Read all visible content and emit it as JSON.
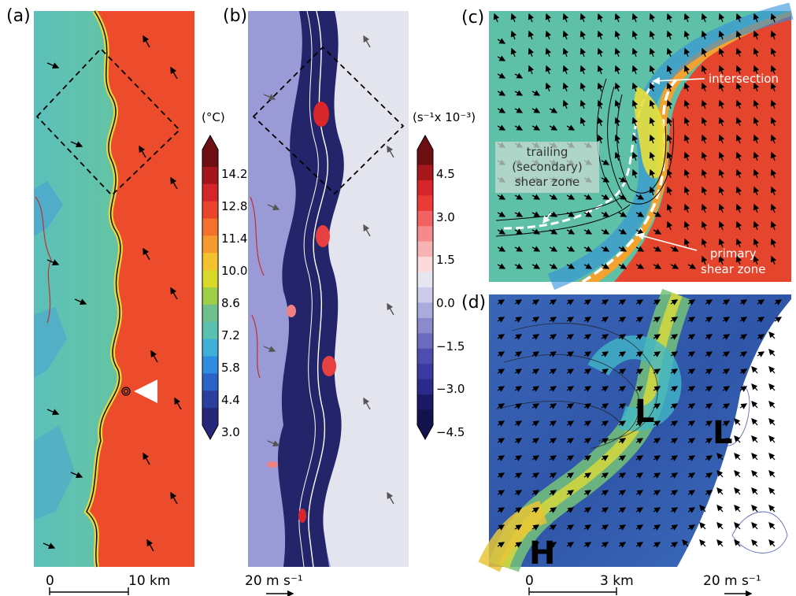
{
  "panel_labels": {
    "a": "(a)",
    "b": "(b)",
    "c": "(c)",
    "d": "(d)"
  },
  "colorbar_a": {
    "unit": "(°C)",
    "ticks": [
      "14.2",
      "12.8",
      "11.4",
      "10.0",
      "8.6",
      "7.2",
      "5.8",
      "4.4",
      "3.0"
    ],
    "colors": [
      "#6d0f12",
      "#a3171c",
      "#d2262a",
      "#e9442c",
      "#f2712c",
      "#f69a30",
      "#f5c22f",
      "#d9d929",
      "#9fcf49",
      "#6fc08d",
      "#5ac1b0",
      "#3fb0d8",
      "#2f8ce0",
      "#2b63c8",
      "#2a3f9e",
      "#25287a"
    ]
  },
  "colorbar_b": {
    "unit": "(s⁻¹x 10⁻³)",
    "ticks": [
      "4.5",
      "3.0",
      "1.5",
      "0.0",
      "−1.5",
      "−3.0",
      "−4.5"
    ],
    "colors": [
      "#6d0f12",
      "#a8171c",
      "#d6262a",
      "#ec3a35",
      "#f26262",
      "#f48a8a",
      "#f7b3b3",
      "#fadada",
      "#e6e6f0",
      "#ccccea",
      "#aaaadb",
      "#8a8acc",
      "#6b6bbd",
      "#4d4daf",
      "#3a3aa0",
      "#2a2a8a",
      "#1a1a66",
      "#12124d"
    ]
  },
  "annotations_c": {
    "intersection": "intersection",
    "trailing": [
      "trailing",
      "(secondary)",
      "shear zone"
    ],
    "primary": [
      "primary",
      "shear zone"
    ]
  },
  "pressure_labels_d": {
    "l1": "L",
    "l2": "L",
    "h": "H"
  },
  "scale_bars": {
    "a_start": "0",
    "a_end": "10 km",
    "b_vector": "20 m s⁻¹",
    "d_start": "0",
    "d_end": "3 km",
    "d_vector": "20 m s⁻¹"
  }
}
